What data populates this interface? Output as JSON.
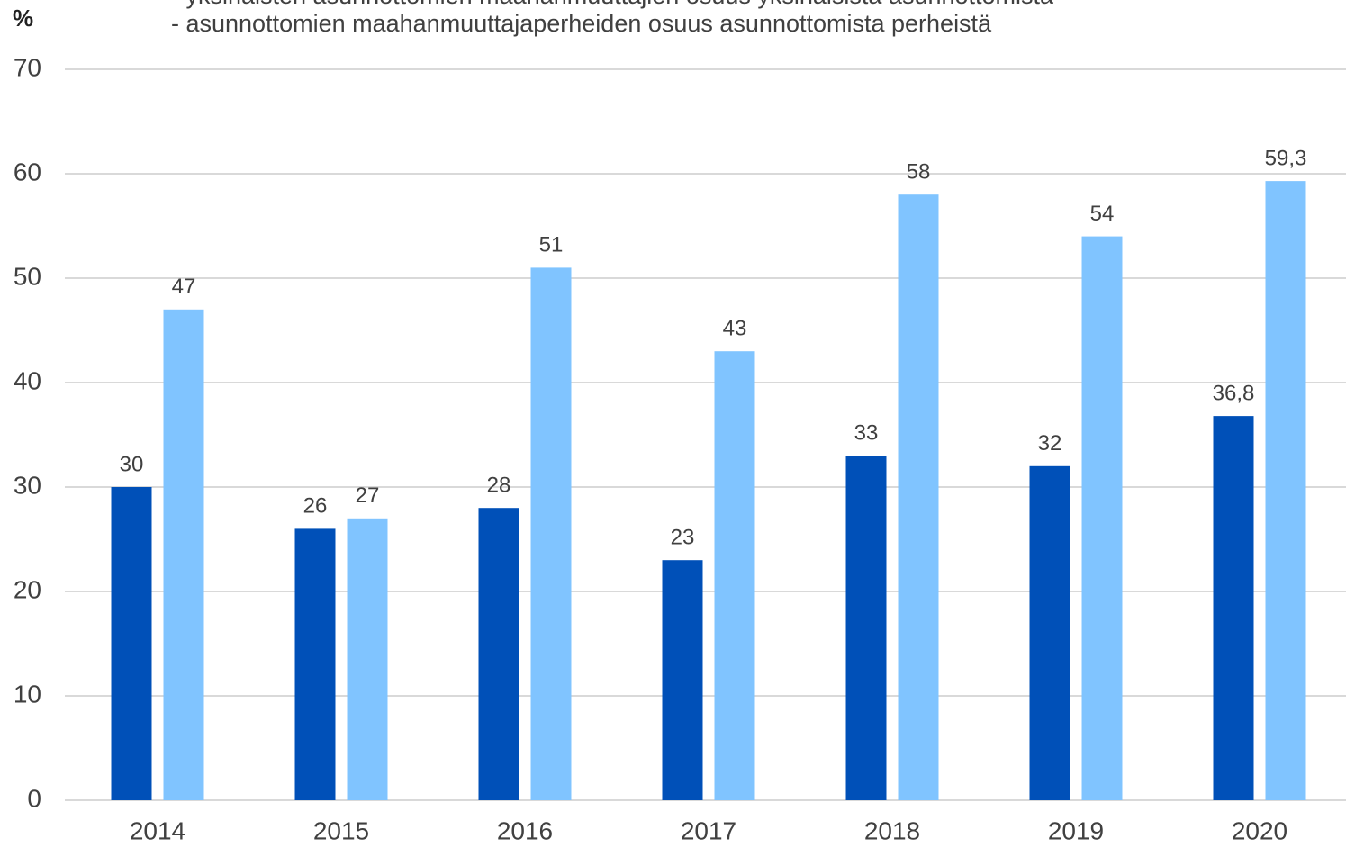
{
  "chart_data": {
    "type": "bar",
    "y_axis_label": "%",
    "categories": [
      "2014",
      "2015",
      "2016",
      "2017",
      "2018",
      "2019",
      "2020"
    ],
    "series": [
      {
        "name": "- yksinäisten asunnottomien maahanmuuttajien osuus yksinäisistä asunnottomista",
        "color": "#0050b8",
        "values": [
          30,
          26,
          28,
          23,
          33,
          32,
          36.8
        ],
        "value_labels": [
          "30",
          "26",
          "28",
          "23",
          "33",
          "32",
          "36,8"
        ]
      },
      {
        "name": "- asunnottomien maahanmuuttajaperheiden osuus asunnottomista perheistä",
        "color": "#80c4ff",
        "values": [
          47,
          27,
          51,
          43,
          58,
          54,
          59.3
        ],
        "value_labels": [
          "47",
          "27",
          "51",
          "43",
          "58",
          "54",
          "59,3"
        ]
      }
    ],
    "ylim": [
      0,
      70
    ],
    "yticks": [
      0,
      10,
      20,
      30,
      40,
      50,
      60,
      70
    ],
    "grid": true
  }
}
